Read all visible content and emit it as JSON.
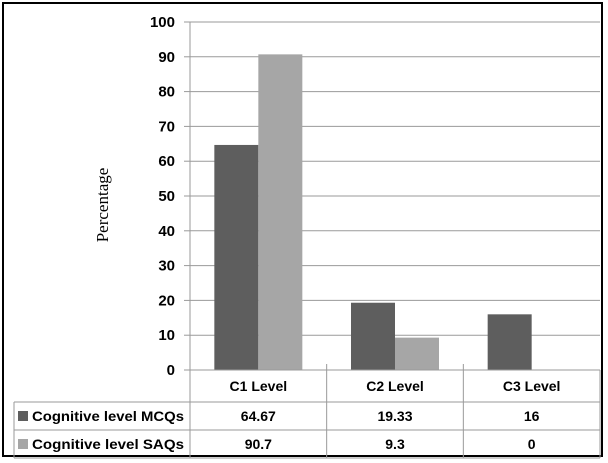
{
  "chart_data": {
    "type": "bar",
    "title": "",
    "xlabel": "",
    "ylabel": "Percentage",
    "ylim": [
      0,
      100
    ],
    "yticks": [
      0,
      10,
      20,
      30,
      40,
      50,
      60,
      70,
      80,
      90,
      100
    ],
    "categories": [
      "C1 Level",
      "C2 Level",
      "C3 Level"
    ],
    "series": [
      {
        "name": "Cognitive level MCQs",
        "color": "#5e5e5e",
        "values": [
          64.67,
          19.33,
          16
        ],
        "labels": [
          "64.67",
          "19.33",
          "16"
        ]
      },
      {
        "name": "Cognitive level SAQs",
        "color": "#a6a6a6",
        "values": [
          90.7,
          9.3,
          0
        ],
        "labels": [
          "90.7",
          "9.3",
          "0"
        ]
      }
    ],
    "grid": true,
    "legend": "data table below chart"
  }
}
